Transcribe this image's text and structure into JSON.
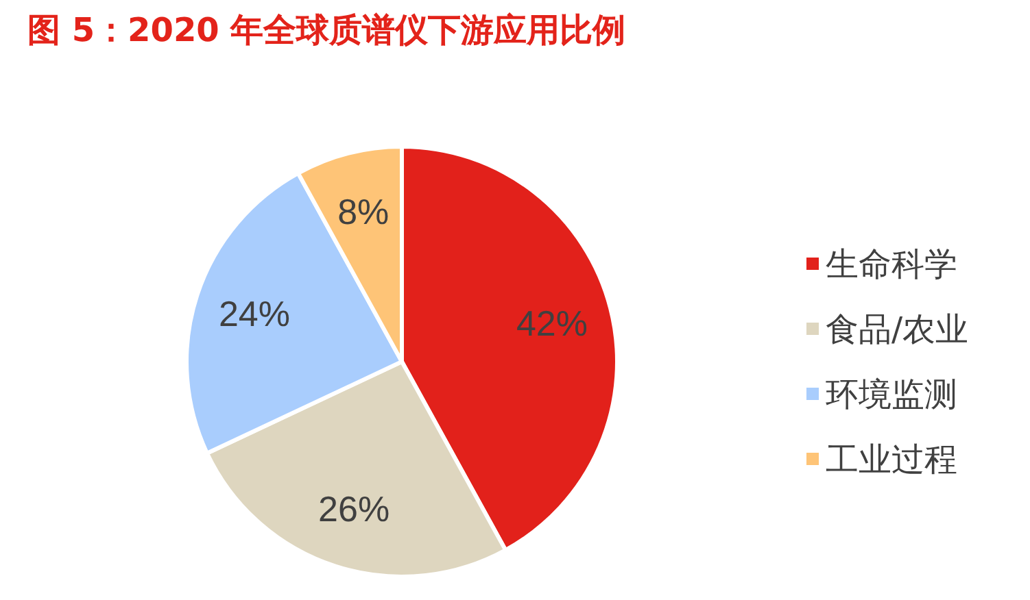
{
  "chart_data": {
    "type": "pie",
    "title": "图 5：2020 年全球质谱仪下游应用比例",
    "categories": [
      "生命科学",
      "食品/农业",
      "环境监测",
      "工业过程"
    ],
    "values": [
      42,
      26,
      24,
      8
    ],
    "value_labels": [
      "42%",
      "26%",
      "24%",
      "8%"
    ],
    "colors": [
      "#e2211b",
      "#ded6bf",
      "#a9cdfd",
      "#fec477"
    ],
    "legend": "right"
  }
}
